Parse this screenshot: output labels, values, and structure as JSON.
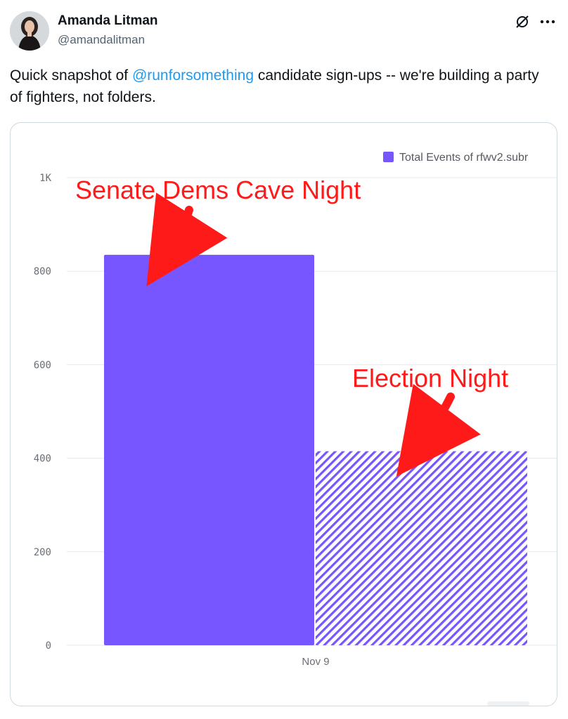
{
  "author": {
    "display_name": "Amanda Litman",
    "handle": "@amandalitman",
    "avatar_icon": "avatar-photo"
  },
  "actions": {
    "grok_icon": "grok-icon",
    "more_icon": "more-horizontal-icon"
  },
  "tweet": {
    "text_before": "Quick snapshot of ",
    "mention": "@runforsomething",
    "text_after": " candidate sign-ups -- we're building a party of fighters, not folders."
  },
  "colors": {
    "bar": "#7856ff",
    "annotation": "#ff1a1a",
    "mention": "#1d9bf0"
  },
  "chart_data": {
    "type": "bar",
    "categories": [
      "Nov 9"
    ],
    "series": [
      {
        "name": "Total Events of rfwv2.subr",
        "values": [
          835
        ],
        "style": "solid"
      },
      {
        "name": "",
        "values": [
          415
        ],
        "style": "hatched"
      }
    ],
    "ylim": [
      0,
      1000
    ],
    "yticks": [
      0,
      200,
      400,
      600,
      800,
      1000
    ],
    "ytick_labels": [
      "0",
      "200",
      "400",
      "600",
      "800",
      "1K"
    ],
    "grid": true,
    "legend_position": "top-right",
    "annotations": [
      {
        "text": "Senate Dems Cave Night",
        "series": 0
      },
      {
        "text": "Election Night",
        "series": 1
      }
    ]
  }
}
